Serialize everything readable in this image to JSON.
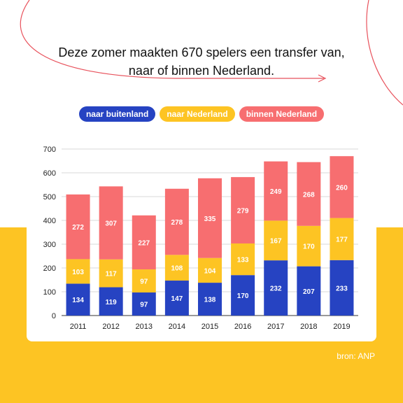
{
  "title": {
    "line1": "Deze zomer maakten 670 spelers een transfer van,",
    "line2": "naar of binnen Nederland."
  },
  "source": "bron: ANP",
  "colors": {
    "naar_buitenland": "#2643c2",
    "naar_nederland": "#fdc423",
    "binnen_nederland": "#f76e70",
    "background_band": "#fdc423",
    "deco_line": "#e8525c"
  },
  "chart_data": {
    "type": "bar",
    "stacked": true,
    "categories": [
      "2011",
      "2012",
      "2013",
      "2014",
      "2015",
      "2016",
      "2017",
      "2018",
      "2019"
    ],
    "series": [
      {
        "name": "naar buitenland",
        "values": [
          134,
          119,
          97,
          147,
          138,
          170,
          232,
          207,
          233
        ]
      },
      {
        "name": "naar Nederland",
        "values": [
          103,
          117,
          97,
          108,
          104,
          133,
          167,
          170,
          177
        ]
      },
      {
        "name": "binnen Nederland",
        "values": [
          272,
          307,
          227,
          278,
          335,
          279,
          249,
          268,
          260
        ]
      }
    ],
    "yticks": [
      "0",
      "100",
      "200",
      "300",
      "400",
      "500",
      "600",
      "700"
    ],
    "ylim": [
      0,
      700
    ],
    "grid": true,
    "legend_position": "top"
  }
}
